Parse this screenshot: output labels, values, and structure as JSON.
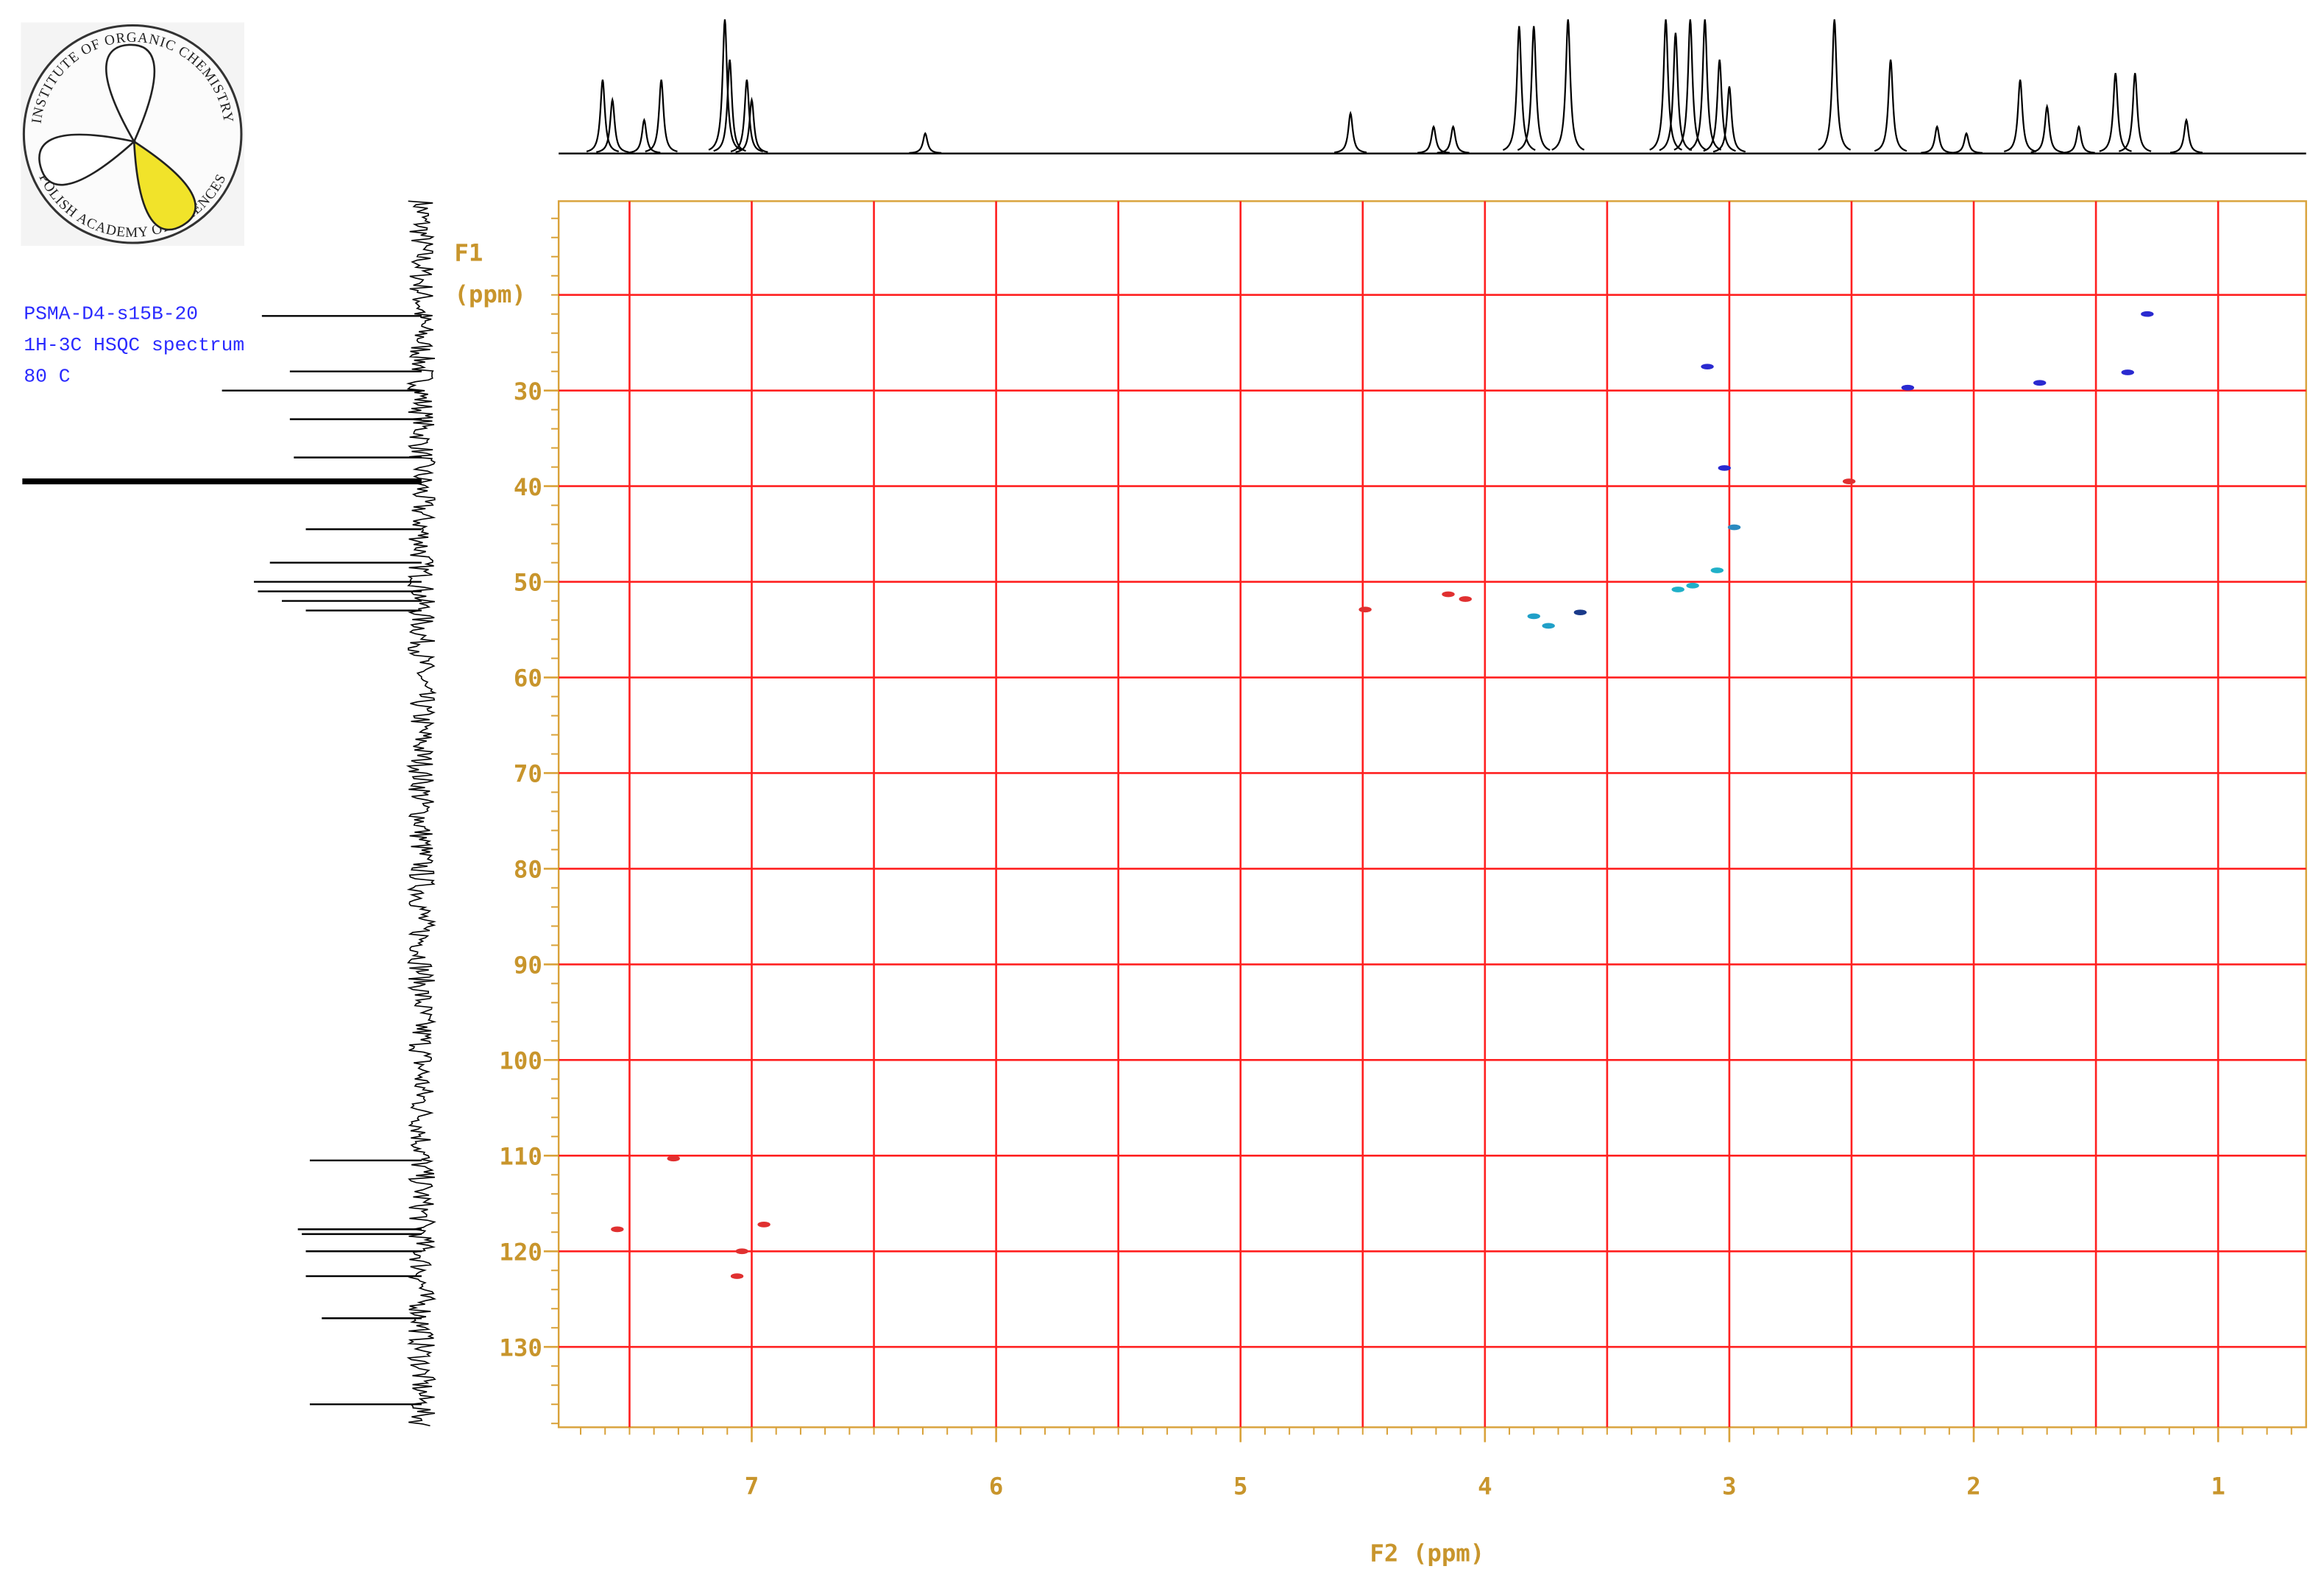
{
  "header": {
    "logo_top": "INSTITUTE OF ORGANIC CHEMISTRY",
    "logo_bottom": "POLISH ACADEMY OF SCIENCES",
    "sample_info": [
      "PSMA-D4-s15B-20",
      "1H-3C HSQC spectrum",
      "80 C"
    ]
  },
  "chart_data": {
    "type": "scatter",
    "x_label": "F2 (ppm)",
    "y_label": [
      "F1",
      "(ppm)"
    ],
    "xlim": [
      7.79,
      0.64
    ],
    "ylim": [
      10.2,
      138.4
    ],
    "xticks": [
      7,
      6,
      5,
      4,
      3,
      2,
      1
    ],
    "yticks": [
      30,
      40,
      50,
      60,
      70,
      80,
      90,
      100,
      110,
      120,
      130
    ],
    "xgrid": [
      7.5,
      7,
      6.5,
      6,
      5.5,
      5,
      4.5,
      4,
      3.5,
      3,
      2.5,
      2,
      1.5,
      1
    ],
    "ygrid": [
      20,
      30,
      40,
      50,
      60,
      70,
      80,
      90,
      100,
      110,
      120,
      130
    ],
    "x_minor_step": 0.1,
    "y_minor_step": 2,
    "grid_color": "#ff2020",
    "axis_color": "#d9a23a",
    "x": [
      1.29,
      3.09,
      2.27,
      1.73,
      1.37,
      3.02,
      2.51,
      2.98,
      3.05,
      3.15,
      3.21,
      4.49,
      4.15,
      4.08,
      3.8,
      3.74,
      3.61,
      7.32,
      7.55,
      6.95,
      7.04,
      7.06
    ],
    "values": [
      22.0,
      27.5,
      29.7,
      29.2,
      28.1,
      38.1,
      39.5,
      44.3,
      48.8,
      50.4,
      50.8,
      52.9,
      51.3,
      51.8,
      53.6,
      54.6,
      53.2,
      110.3,
      117.7,
      117.2,
      120.0,
      122.6
    ],
    "colors": [
      "#2a2ad0",
      "#2a2ad0",
      "#2a2ad0",
      "#2a2ad0",
      "#2a2ad0",
      "#2a2ad0",
      "#e03030",
      "#2a8ac0",
      "#20b0c8",
      "#20b0c8",
      "#20b0c8",
      "#e03030",
      "#e03030",
      "#e03030",
      "#20a0c8",
      "#20a0c8",
      "#1a3a8a",
      "#e03030",
      "#e03030",
      "#e03030",
      "#e03030",
      "#e03030"
    ],
    "f2_projection": {
      "ppm": [
        7.61,
        7.57,
        7.44,
        7.37,
        7.11,
        7.09,
        7.02,
        7.0,
        6.29,
        4.55,
        4.21,
        4.13,
        3.86,
        3.8,
        3.66,
        3.26,
        3.22,
        3.16,
        3.1,
        3.04,
        3.0,
        2.57,
        2.34,
        2.15,
        2.03,
        1.81,
        1.7,
        1.57,
        1.42,
        1.34,
        1.13
      ],
      "intensity": [
        55,
        40,
        25,
        55,
        100,
        70,
        55,
        40,
        15,
        30,
        20,
        20,
        95,
        95,
        100,
        100,
        90,
        100,
        100,
        70,
        50,
        100,
        70,
        20,
        15,
        55,
        35,
        20,
        60,
        60,
        25
      ]
    },
    "f1_projection": {
      "ppm": [
        22.2,
        28.0,
        30.0,
        33.0,
        37.0,
        39.5,
        44.5,
        48.0,
        50.0,
        51.0,
        52.0,
        53.0,
        110.5,
        117.7,
        118.2,
        120.0,
        122.6,
        127.0,
        136.0
      ],
      "intensity": [
        40,
        33,
        50,
        33,
        32,
        100,
        29,
        38,
        42,
        41,
        35,
        29,
        28,
        31,
        30,
        29,
        29,
        25,
        28
      ]
    }
  }
}
